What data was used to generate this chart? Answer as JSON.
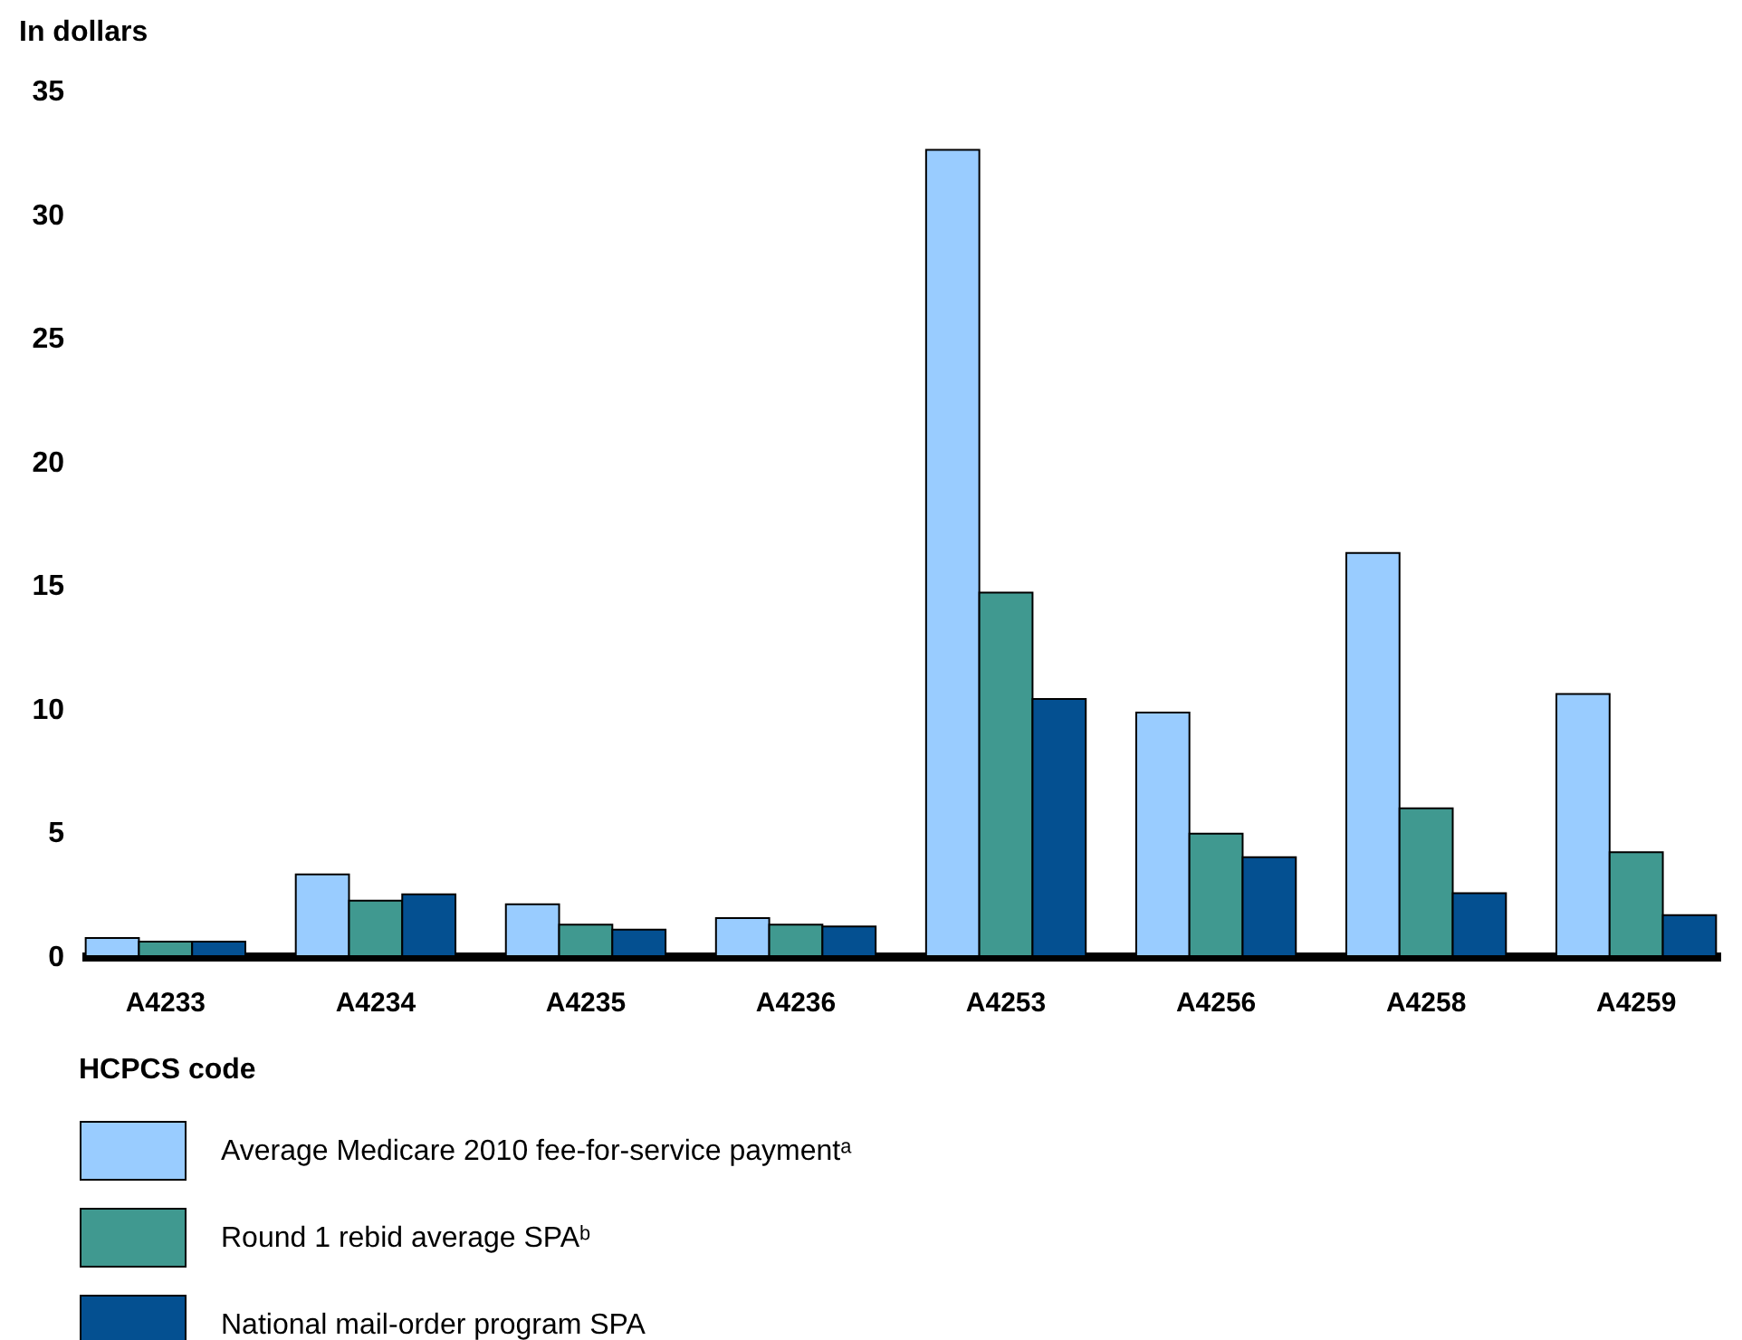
{
  "chart_data": {
    "type": "bar",
    "ylabel": "In dollars",
    "xlabel": "HCPCS code",
    "categories": [
      "A4233",
      "A4234",
      "A4235",
      "A4236",
      "A4253",
      "A4256",
      "A4258",
      "A4259"
    ],
    "series": [
      {
        "name": "Average Medicare 2010 fee-for-service paymentᵃ",
        "color": "#99ccff",
        "values": [
          0.73,
          3.3,
          2.1,
          1.54,
          32.6,
          9.85,
          16.3,
          10.6
        ]
      },
      {
        "name": "Round 1 rebid average SPAᵇ",
        "color": "#409990",
        "values": [
          0.59,
          2.24,
          1.27,
          1.27,
          14.7,
          4.95,
          5.98,
          4.2
        ]
      },
      {
        "name": "National mail-order program SPA",
        "color": "#045091",
        "values": [
          0.59,
          2.5,
          1.07,
          1.2,
          10.4,
          4.0,
          2.54,
          1.66
        ]
      }
    ],
    "ylim": [
      0,
      35
    ],
    "yticks": [
      0,
      5,
      10,
      15,
      20,
      25,
      30,
      35
    ],
    "legend": "bottom left"
  }
}
